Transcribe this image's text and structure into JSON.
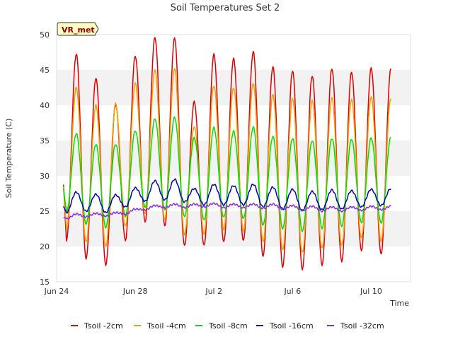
{
  "chart_data": {
    "type": "line",
    "title": "Soil Temperatures Set 2",
    "xlabel": "Time",
    "ylabel": "Soil Temperature (C)",
    "ylim": [
      15,
      50
    ],
    "yticks": [
      15,
      20,
      25,
      30,
      35,
      40,
      45,
      50
    ],
    "xlim": [
      "Jun 24",
      "Jul 12"
    ],
    "xticks": [
      "Jun 24",
      "Jun 28",
      "Jul 2",
      "Jul 6",
      "Jul 10"
    ],
    "badge": "VR_met",
    "grid": "horizontal bands",
    "legend": "bottom",
    "x_days": [
      0.5,
      1.0,
      1.5,
      2.0,
      2.5,
      3.0,
      3.5,
      4.0,
      4.5,
      5.0,
      5.5,
      6.0,
      6.5,
      7.0,
      7.5,
      8.0,
      8.5,
      9.0,
      9.5,
      10.0,
      10.5,
      11.0,
      11.5,
      12.0,
      12.5,
      13.0,
      13.5,
      14.0,
      14.5,
      15.0,
      15.5,
      16.0,
      16.5,
      17.0
    ],
    "series": [
      {
        "name": "Tsoil -2cm",
        "color": "#e00000",
        "peaks": [
          47.3,
          43.9,
          40.1,
          47.0,
          49.6,
          49.5,
          40.5,
          47.2,
          46.6,
          47.6,
          45.5,
          44.9,
          44.2,
          45.2,
          44.7,
          45.3,
          45.1
        ],
        "troughs": [
          20.8,
          18.3,
          17.4,
          20.9,
          23.5,
          22.9,
          20.1,
          20.1,
          20.6,
          20.8,
          18.6,
          17.1,
          16.8,
          17.4,
          17.9,
          19.4,
          18.9,
          22.3
        ]
      },
      {
        "name": "Tsoil -4cm",
        "color": "#f0a000",
        "peaks": [
          42.5,
          40.0,
          40.2,
          43.1,
          45.0,
          45.2,
          37.0,
          42.8,
          42.5,
          43.1,
          41.5,
          40.9,
          40.6,
          41.0,
          40.8,
          41.2,
          41.0
        ],
        "troughs": [
          22.5,
          20.6,
          19.9,
          22.8,
          24.6,
          23.8,
          21.7,
          21.8,
          22.4,
          22.2,
          20.7,
          19.5,
          19.1,
          19.7,
          20.1,
          21.2,
          20.7,
          24.4
        ]
      },
      {
        "name": "Tsoil -8cm",
        "color": "#00e000",
        "peaks": [
          36.0,
          34.5,
          34.5,
          36.4,
          38.1,
          38.3,
          35.4,
          36.8,
          36.3,
          36.9,
          35.6,
          35.3,
          35.0,
          35.3,
          35.2,
          35.4,
          35.4
        ],
        "troughs": [
          24.9,
          23.2,
          22.7,
          24.3,
          25.6,
          25.2,
          24.2,
          23.7,
          24.1,
          23.9,
          23.0,
          22.5,
          22.2,
          22.6,
          22.9,
          23.4,
          23.3,
          25.8
        ]
      },
      {
        "name": "Tsoil -16cm",
        "color": "#0000c0",
        "peaks": [
          27.7,
          27.4,
          27.3,
          28.3,
          29.3,
          29.5,
          28.2,
          28.8,
          28.6,
          28.8,
          28.4,
          28.1,
          27.8,
          28.0,
          27.9,
          28.1,
          28.2
        ],
        "troughs": [
          24.8,
          25.0,
          24.8,
          25.6,
          26.4,
          26.6,
          26.3,
          25.9,
          25.9,
          25.9,
          25.6,
          25.3,
          25.1,
          25.2,
          25.3,
          25.6,
          25.8,
          27.5
        ]
      },
      {
        "name": "Tsoil -32cm",
        "color": "#8a2be2",
        "peaks": [
          24.6,
          24.7,
          24.8,
          25.3,
          25.8,
          26.0,
          26.0,
          26.1,
          26.0,
          26.0,
          26.0,
          25.8,
          25.7,
          25.6,
          25.6,
          25.7,
          25.7
        ],
        "troughs": [
          23.9,
          24.2,
          24.3,
          24.6,
          25.2,
          25.5,
          25.5,
          25.6,
          25.5,
          25.5,
          25.4,
          25.3,
          25.1,
          25.0,
          25.0,
          25.1,
          25.2,
          25.1
        ]
      }
    ]
  }
}
